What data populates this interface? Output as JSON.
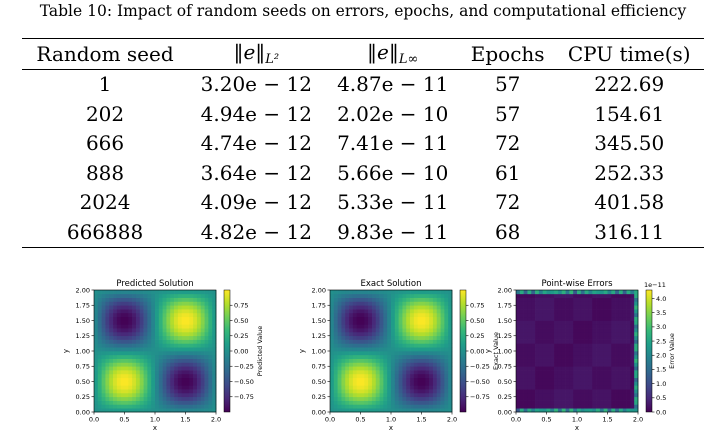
{
  "caption": "Table 10: Impact of random seeds on errors, epochs, and computational efficiency",
  "table": {
    "headers": {
      "seed": "Random seed",
      "l2_norm": "‖e‖",
      "l2_sub": "L²",
      "linf_norm": "‖e‖",
      "linf_sub": "L∞",
      "epochs": "Epochs",
      "cpu": "CPU time(s)"
    },
    "rows": [
      {
        "seed": "1",
        "l2": "3.20e − 12",
        "linf": "4.87e − 11",
        "epochs": "57",
        "cpu": "222.69"
      },
      {
        "seed": "202",
        "l2": "4.94e − 12",
        "linf": "2.02e − 10",
        "epochs": "57",
        "cpu": "154.61"
      },
      {
        "seed": "666",
        "l2": "4.74e − 12",
        "linf": "7.41e − 11",
        "epochs": "72",
        "cpu": "345.50"
      },
      {
        "seed": "888",
        "l2": "3.64e − 12",
        "linf": "5.66e − 10",
        "epochs": "61",
        "cpu": "252.33"
      },
      {
        "seed": "2024",
        "l2": "4.09e − 12",
        "linf": "5.33e − 11",
        "epochs": "72",
        "cpu": "401.58"
      },
      {
        "seed": "666888",
        "l2": "4.82e − 12",
        "linf": "9.83e − 11",
        "epochs": "68",
        "cpu": "316.11"
      }
    ]
  },
  "chart_data": [
    {
      "type": "heatmap",
      "title": "Predicted Solution",
      "xlabel": "x",
      "ylabel": "y",
      "xlim": [
        0,
        2
      ],
      "ylim": [
        0,
        2
      ],
      "x_ticks": [
        "0.0",
        "0.5",
        "1.0",
        "1.5",
        "2.0"
      ],
      "y_ticks": [
        "0.00",
        "0.25",
        "0.50",
        "0.75",
        "1.00",
        "1.25",
        "1.50",
        "1.75",
        "2.00"
      ],
      "colorbar_label": "Predicted Value",
      "colorbar_ticks": [
        "0.75",
        "0.50",
        "0.25",
        "0.00",
        "−0.25",
        "−0.50",
        "−0.75"
      ],
      "colorbar_range": [
        -1,
        1
      ],
      "colormap": "viridis"
    },
    {
      "type": "heatmap",
      "title": "Exact Solution",
      "xlabel": "x",
      "ylabel": "y",
      "xlim": [
        0,
        2
      ],
      "ylim": [
        0,
        2
      ],
      "x_ticks": [
        "0.0",
        "0.5",
        "1.0",
        "1.5",
        "2.0"
      ],
      "y_ticks": [
        "0.00",
        "0.25",
        "0.50",
        "0.75",
        "1.00",
        "1.25",
        "1.50",
        "1.75",
        "2.00"
      ],
      "colorbar_label": "Exact Value",
      "colorbar_ticks": [
        "0.75",
        "0.50",
        "0.25",
        "0.00",
        "−0.25",
        "−0.50",
        "−0.75"
      ],
      "colorbar_range": [
        -1,
        1
      ],
      "colormap": "viridis"
    },
    {
      "type": "heatmap",
      "title": "Point-wise Errors",
      "xlabel": "x",
      "ylabel": "y",
      "xlim": [
        0,
        2
      ],
      "ylim": [
        0,
        2
      ],
      "x_ticks": [
        "0.0",
        "0.5",
        "1.0",
        "1.5",
        "2.0"
      ],
      "y_ticks": [
        "0.00",
        "0.25",
        "0.50",
        "0.75",
        "1.00",
        "1.25",
        "1.50",
        "1.75",
        "2.00"
      ],
      "colorbar_label": "Error Value",
      "colorbar_offset": "1e−11",
      "colorbar_ticks": [
        "4.0",
        "3.5",
        "3.0",
        "2.5",
        "2.0",
        "1.5",
        "1.0",
        "0.5",
        "0.0"
      ],
      "colorbar_range": [
        0,
        4.3
      ],
      "colormap": "viridis"
    }
  ]
}
